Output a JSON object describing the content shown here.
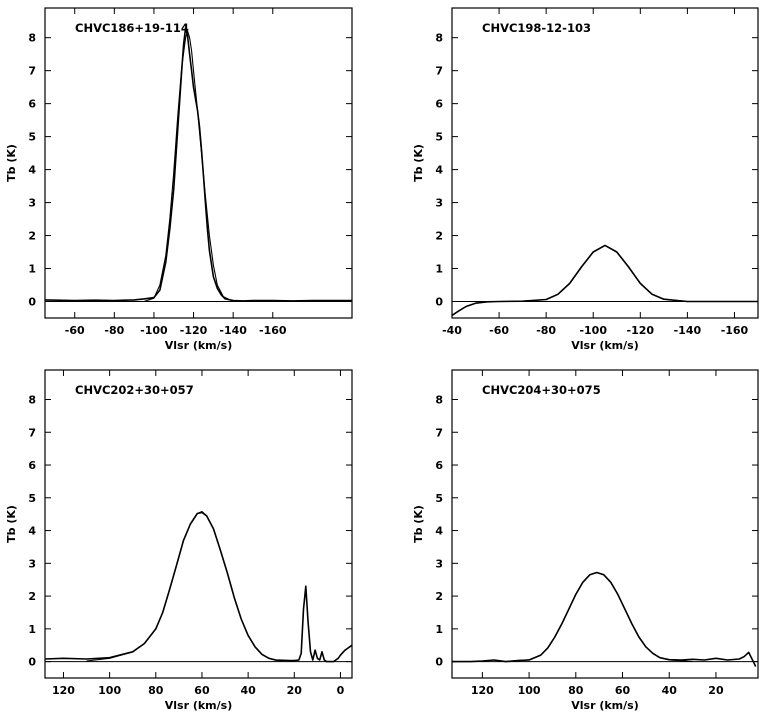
{
  "chart_data": [
    {
      "type": "line",
      "title": "CHVC186+19-114",
      "xlabel": "Vlsr (km/s)",
      "ylabel": "Tb (K)",
      "xlim": [
        -45,
        -200
      ],
      "ylim": [
        -0.5,
        8.9
      ],
      "xticks": [
        -60,
        -80,
        -100,
        -120,
        -140,
        -160
      ],
      "yticks": [
        0,
        1,
        2,
        3,
        4,
        5,
        6,
        7,
        8
      ],
      "series": [
        {
          "kind": "observed",
          "x": [
            -45,
            -60,
            -70,
            -80,
            -90,
            -95,
            -100,
            -103,
            -106,
            -108,
            -110,
            -111,
            -112,
            -113,
            -114,
            -115,
            -116,
            -117,
            -118,
            -119,
            -120,
            -121,
            -122,
            -123,
            -124,
            -125,
            -126,
            -127,
            -128,
            -130,
            -132,
            -134,
            -136,
            -140,
            -145,
            -150,
            -160,
            -170,
            -180,
            -200
          ],
          "y": [
            0.05,
            0.03,
            0.04,
            0.03,
            0.05,
            0.08,
            0.12,
            0.35,
            1.2,
            2.2,
            3.4,
            4.3,
            5.2,
            6.1,
            7.0,
            7.8,
            8.3,
            8.05,
            7.5,
            7.0,
            6.5,
            6.15,
            5.8,
            5.3,
            4.6,
            3.8,
            3.0,
            2.2,
            1.55,
            0.75,
            0.4,
            0.2,
            0.08,
            0.03,
            0.02,
            0.03,
            0.03,
            0.02,
            0.03,
            0.03
          ]
        },
        {
          "kind": "fit",
          "x": [
            -95,
            -100,
            -103,
            -106,
            -108,
            -110,
            -112,
            -114,
            -116,
            -117,
            -118,
            -119,
            -120,
            -122,
            -124,
            -126,
            -128,
            -130,
            -132,
            -135,
            -140
          ],
          "y": [
            0,
            0.1,
            0.5,
            1.4,
            2.5,
            3.9,
            5.6,
            7.1,
            8.0,
            8.2,
            8.0,
            7.6,
            7.0,
            5.8,
            4.5,
            3.2,
            2.0,
            1.1,
            0.5,
            0.15,
            0
          ]
        }
      ]
    },
    {
      "type": "line",
      "title": "CHVC198-12-103",
      "xlabel": "Vlsr (km/s)",
      "ylabel": "Tb (K)",
      "xlim": [
        -40,
        -170
      ],
      "ylim": [
        -0.5,
        8.9
      ],
      "xticks": [
        -40,
        -60,
        -80,
        -100,
        -120,
        -140,
        -160
      ],
      "yticks": [
        0,
        1,
        2,
        3,
        4,
        5,
        6,
        7,
        8
      ],
      "series": [
        {
          "kind": "observed",
          "x": [
            -40,
            -43,
            -46,
            -50,
            -55,
            -60,
            -70,
            -80,
            -85,
            -90,
            -95,
            -100,
            -105,
            -110,
            -115,
            -120,
            -125,
            -130,
            -140,
            -150,
            -160,
            -170
          ],
          "y": [
            -0.42,
            -0.28,
            -0.15,
            -0.05,
            -0.01,
            0.0,
            0.01,
            0.06,
            0.22,
            0.55,
            1.05,
            1.5,
            1.7,
            1.5,
            1.05,
            0.55,
            0.22,
            0.07,
            0.0,
            0.0,
            0.0,
            0.0
          ]
        },
        {
          "kind": "fit",
          "x": [
            -60,
            -70,
            -80,
            -85,
            -90,
            -95,
            -100,
            -105,
            -110,
            -115,
            -120,
            -125,
            -130,
            -140,
            -150
          ],
          "y": [
            0,
            0.01,
            0.06,
            0.22,
            0.55,
            1.05,
            1.5,
            1.7,
            1.5,
            1.05,
            0.55,
            0.22,
            0.07,
            0.0,
            0.0
          ]
        }
      ]
    },
    {
      "type": "line",
      "title": "CHVC202+30+057",
      "xlabel": "Vlsr (km/s)",
      "ylabel": "Tb (K)",
      "xlim": [
        128,
        -5
      ],
      "ylim": [
        -0.5,
        8.9
      ],
      "xticks": [
        120,
        100,
        80,
        60,
        40,
        20,
        0
      ],
      "yticks": [
        0,
        1,
        2,
        3,
        4,
        5,
        6,
        7,
        8
      ],
      "series": [
        {
          "kind": "observed",
          "x": [
            128,
            120,
            110,
            100,
            90,
            85,
            80,
            77,
            74,
            71,
            68,
            65,
            62,
            60,
            58,
            55,
            52,
            49,
            46,
            43,
            40,
            37,
            34,
            31,
            28,
            25,
            22,
            20,
            18,
            17,
            16,
            15,
            14,
            13,
            12,
            11,
            10,
            9,
            8,
            7,
            6,
            5,
            3,
            1,
            0,
            -2,
            -5
          ],
          "y": [
            0.08,
            0.1,
            0.08,
            0.12,
            0.3,
            0.55,
            1.0,
            1.5,
            2.2,
            2.95,
            3.7,
            4.2,
            4.52,
            4.55,
            4.45,
            4.05,
            3.4,
            2.7,
            1.95,
            1.3,
            0.8,
            0.45,
            0.22,
            0.1,
            0.05,
            0.04,
            0.03,
            0.03,
            0.05,
            0.25,
            1.6,
            2.3,
            1.2,
            0.3,
            0.05,
            0.35,
            0.1,
            0.05,
            0.3,
            0.05,
            0.0,
            0.0,
            0.0,
            0.1,
            0.2,
            0.35,
            0.5
          ]
        },
        {
          "kind": "fit",
          "x": [
            110,
            100,
            90,
            85,
            80,
            77,
            74,
            71,
            68,
            65,
            62,
            60,
            58,
            55,
            52,
            49,
            46,
            43,
            40,
            37,
            34,
            31,
            28,
            25
          ],
          "y": [
            0.02,
            0.1,
            0.3,
            0.55,
            1.0,
            1.5,
            2.2,
            2.95,
            3.7,
            4.2,
            4.52,
            4.58,
            4.45,
            4.05,
            3.4,
            2.7,
            1.95,
            1.3,
            0.8,
            0.45,
            0.22,
            0.1,
            0.04,
            0.02
          ]
        }
      ]
    },
    {
      "type": "line",
      "title": "CHVC204+30+075",
      "xlabel": "Vlsr (km/s)",
      "ylabel": "Tb (K)",
      "xlim": [
        133,
        2
      ],
      "ylim": [
        -0.5,
        8.9
      ],
      "xticks": [
        120,
        100,
        80,
        60,
        40,
        20
      ],
      "yticks": [
        0,
        1,
        2,
        3,
        4,
        5,
        6,
        7,
        8
      ],
      "series": [
        {
          "kind": "observed",
          "x": [
            133,
            125,
            120,
            115,
            110,
            105,
            100,
            95,
            92,
            89,
            86,
            83,
            80,
            77,
            74,
            71,
            68,
            65,
            62,
            59,
            56,
            53,
            50,
            47,
            44,
            40,
            35,
            30,
            25,
            20,
            15,
            10,
            8,
            6,
            4,
            3
          ],
          "y": [
            0.0,
            0.0,
            0.02,
            0.05,
            0.0,
            0.03,
            0.05,
            0.2,
            0.42,
            0.75,
            1.15,
            1.6,
            2.05,
            2.42,
            2.65,
            2.72,
            2.65,
            2.42,
            2.05,
            1.6,
            1.15,
            0.75,
            0.45,
            0.25,
            0.12,
            0.06,
            0.05,
            0.07,
            0.05,
            0.1,
            0.05,
            0.08,
            0.15,
            0.28,
            0.0,
            -0.15
          ]
        },
        {
          "kind": "fit",
          "x": [
            110,
            100,
            95,
            92,
            89,
            86,
            83,
            80,
            77,
            74,
            71,
            68,
            65,
            62,
            59,
            56,
            53,
            50,
            47,
            44,
            40,
            30
          ],
          "y": [
            0.0,
            0.06,
            0.2,
            0.42,
            0.75,
            1.15,
            1.6,
            2.05,
            2.42,
            2.65,
            2.72,
            2.65,
            2.42,
            2.05,
            1.6,
            1.15,
            0.75,
            0.45,
            0.25,
            0.12,
            0.05,
            0.0
          ]
        }
      ]
    }
  ]
}
